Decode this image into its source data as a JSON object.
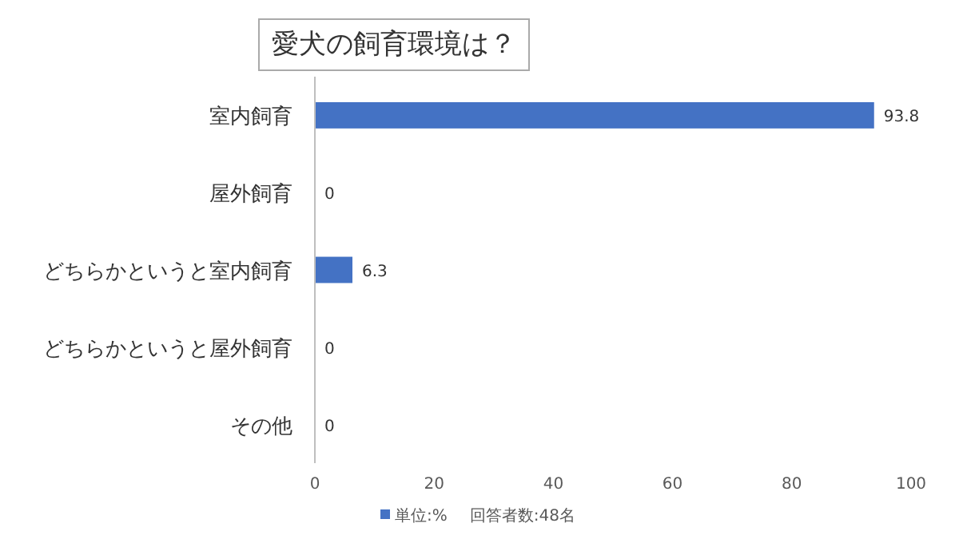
{
  "chart_data": {
    "type": "bar",
    "orientation": "horizontal",
    "title": "愛犬の飼育環境は？",
    "categories": [
      "室内飼育",
      "屋外飼育",
      "どちらかというと室内飼育",
      "どちらかというと屋外飼育",
      "その他"
    ],
    "series": [
      {
        "name": "単位:%",
        "color": "#4472c4",
        "values": [
          93.8,
          0,
          6.3,
          0,
          0
        ]
      }
    ],
    "xlim": [
      0,
      100
    ],
    "xticks": [
      0,
      20,
      40,
      60,
      80,
      100
    ],
    "data_labels": true,
    "legend": "bottom",
    "grid": false,
    "annotations": [
      "回答者数:48名"
    ]
  }
}
